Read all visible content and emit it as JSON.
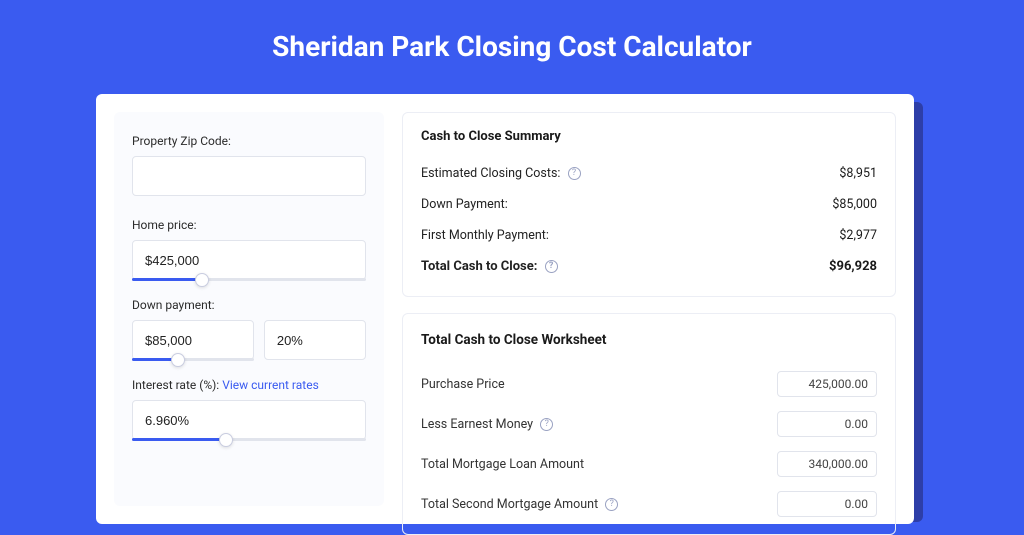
{
  "colors": {
    "page_bg": "#3a5bf0",
    "card_bg": "#ffffff",
    "card_shadow": "#2d3ea8",
    "left_col_bg": "#fafbfe",
    "border": "#e1e4ec",
    "panel_border": "#eceef5",
    "link": "#3a5bf0",
    "slider_fill": "#3a5bf0",
    "help_icon": "#9aa2c2",
    "text": "#1a1a1a"
  },
  "title": "Sheridan Park Closing Cost Calculator",
  "form": {
    "zip": {
      "label": "Property Zip Code:",
      "value": ""
    },
    "home_price": {
      "label": "Home price:",
      "value": "$425,000",
      "slider_pct": 30
    },
    "down_payment": {
      "label": "Down payment:",
      "value": "$85,000",
      "pct": "20%",
      "slider_pct": 38
    },
    "interest_rate": {
      "label_prefix": "Interest rate (%):",
      "link_text": "View current rates",
      "value": "6.960%",
      "slider_pct": 40
    }
  },
  "summary": {
    "title": "Cash to Close Summary",
    "rows": [
      {
        "label": "Estimated Closing Costs:",
        "help": true,
        "value": "$8,951"
      },
      {
        "label": "Down Payment:",
        "help": false,
        "value": "$85,000"
      },
      {
        "label": "First Monthly Payment:",
        "help": false,
        "value": "$2,977"
      }
    ],
    "total": {
      "label": "Total Cash to Close:",
      "help": true,
      "value": "$96,928"
    }
  },
  "worksheet": {
    "title": "Total Cash to Close Worksheet",
    "rows": [
      {
        "label": "Purchase Price",
        "help": false,
        "value": "425,000.00"
      },
      {
        "label": "Less Earnest Money",
        "help": true,
        "value": "0.00"
      },
      {
        "label": "Total Mortgage Loan Amount",
        "help": false,
        "value": "340,000.00"
      },
      {
        "label": "Total Second Mortgage Amount",
        "help": true,
        "value": "0.00"
      }
    ]
  }
}
